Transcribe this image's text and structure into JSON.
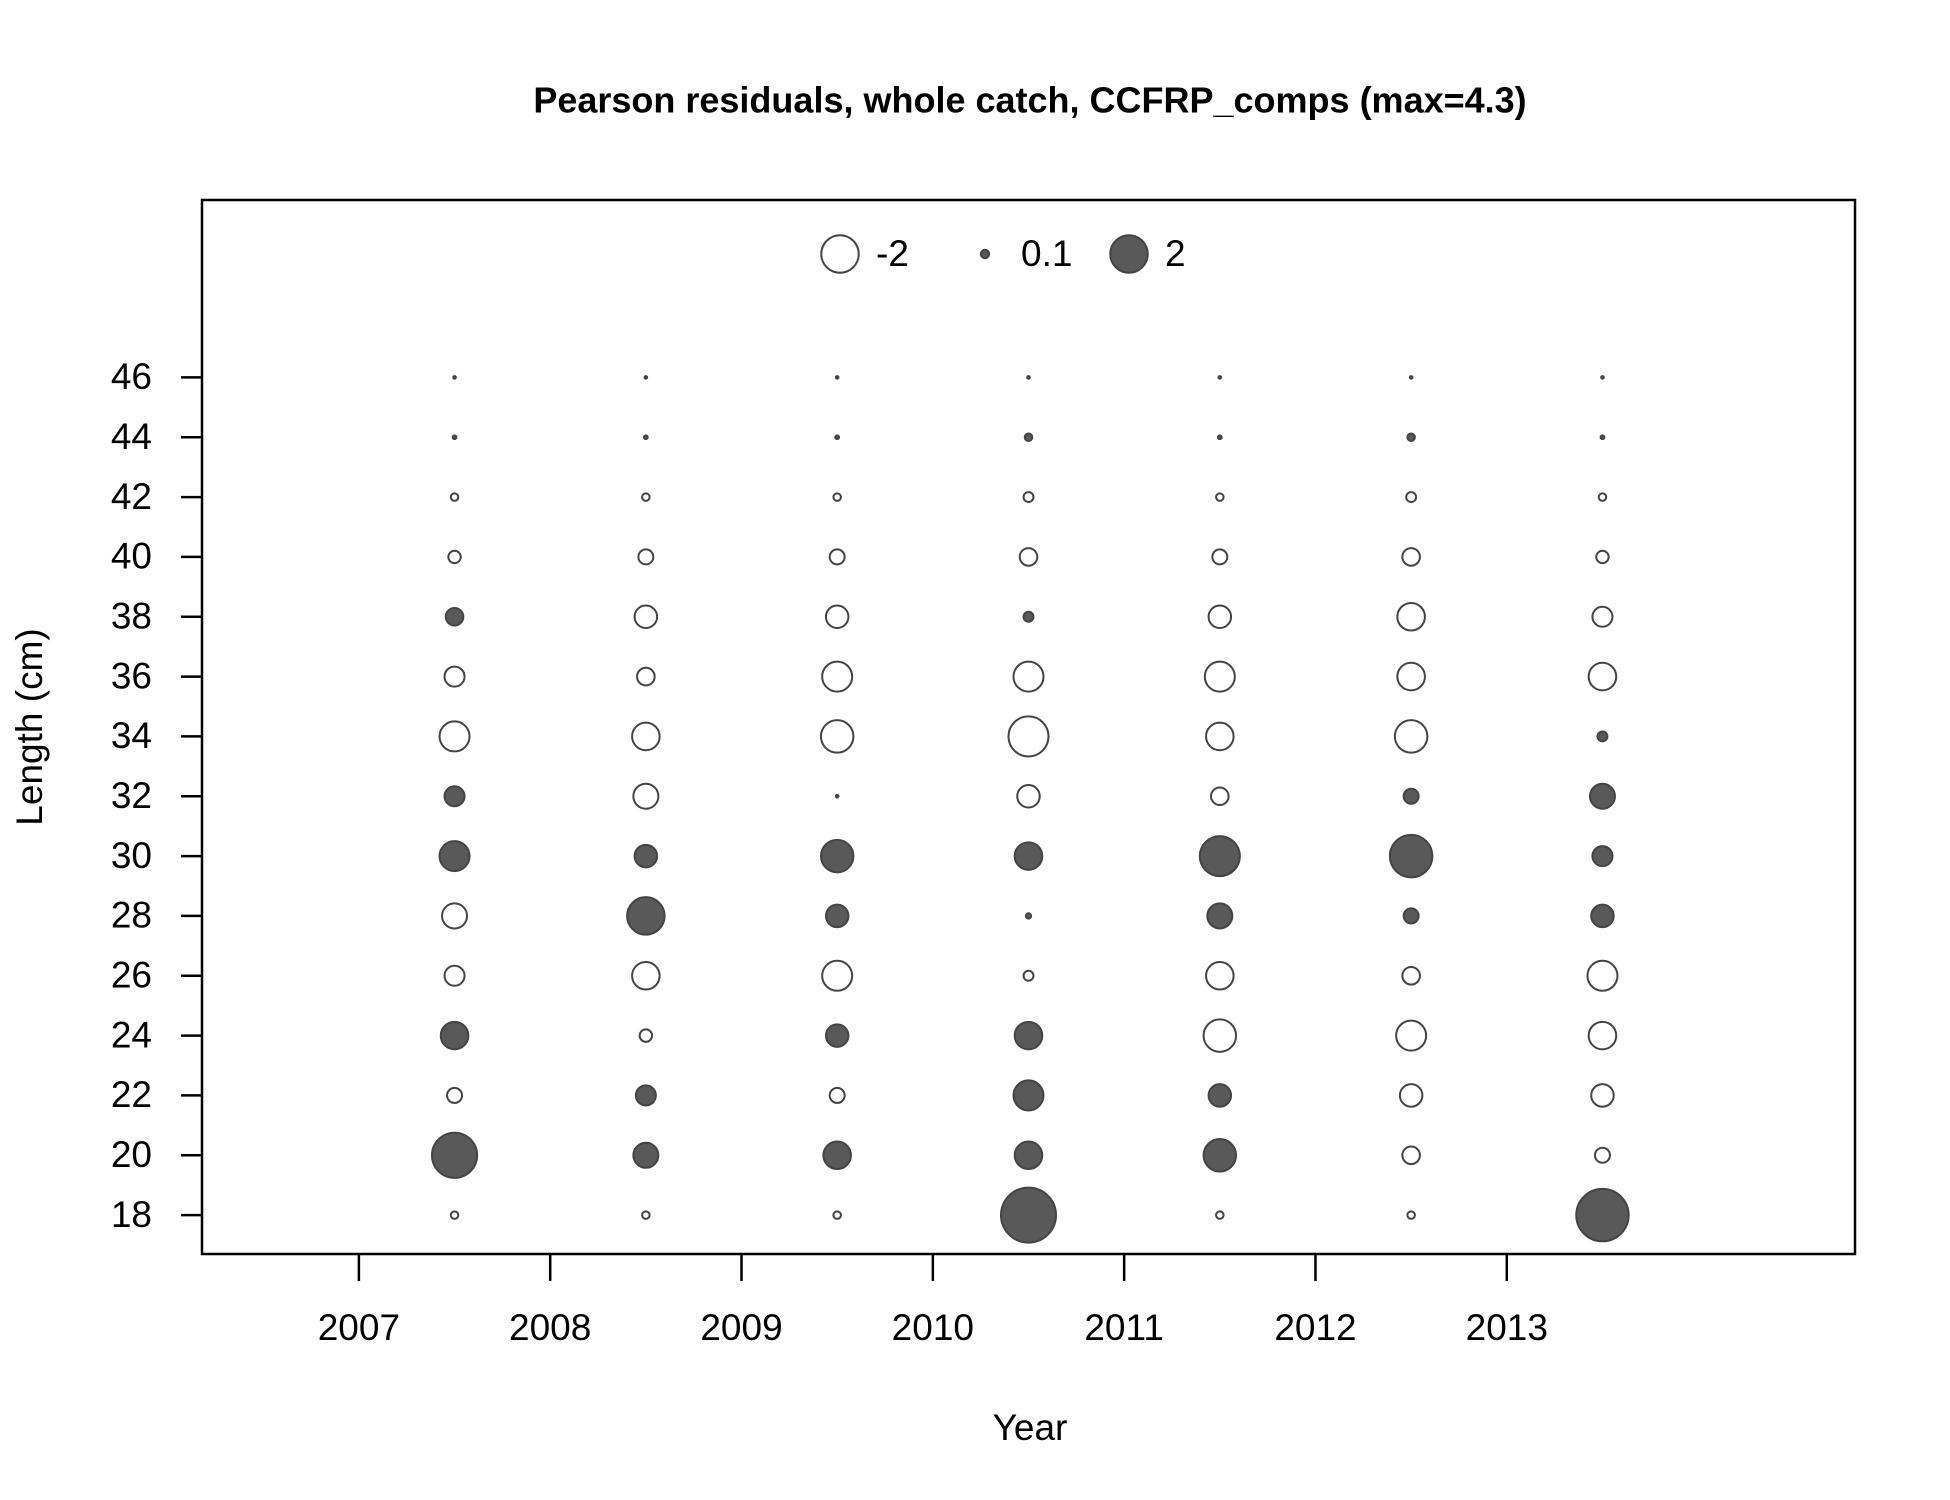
{
  "chart_data": {
    "type": "bubble",
    "title": "Pearson residuals, whole catch, CCFRP_comps (max=4.3)",
    "xlabel": "Year",
    "ylabel": "Length (cm)",
    "x": [
      2007.5,
      2007.5,
      2007.5,
      2007.5,
      2007.5,
      2007.5,
      2007.5,
      2007.5,
      2007.5,
      2007.5,
      2007.5,
      2007.5,
      2007.5,
      2007.5,
      2007.5,
      2008.5,
      2008.5,
      2008.5,
      2008.5,
      2008.5,
      2008.5,
      2008.5,
      2008.5,
      2008.5,
      2008.5,
      2008.5,
      2008.5,
      2008.5,
      2008.5,
      2008.5,
      2009.5,
      2009.5,
      2009.5,
      2009.5,
      2009.5,
      2009.5,
      2009.5,
      2009.5,
      2009.5,
      2009.5,
      2009.5,
      2009.5,
      2009.5,
      2009.5,
      2009.5,
      2010.5,
      2010.5,
      2010.5,
      2010.5,
      2010.5,
      2010.5,
      2010.5,
      2010.5,
      2010.5,
      2010.5,
      2010.5,
      2010.5,
      2010.5,
      2010.5,
      2010.5,
      2011.5,
      2011.5,
      2011.5,
      2011.5,
      2011.5,
      2011.5,
      2011.5,
      2011.5,
      2011.5,
      2011.5,
      2011.5,
      2011.5,
      2011.5,
      2011.5,
      2011.5,
      2012.5,
      2012.5,
      2012.5,
      2012.5,
      2012.5,
      2012.5,
      2012.5,
      2012.5,
      2012.5,
      2012.5,
      2012.5,
      2012.5,
      2012.5,
      2012.5,
      2012.5,
      2013.5,
      2013.5,
      2013.5,
      2013.5,
      2013.5,
      2013.5,
      2013.5,
      2013.5,
      2013.5,
      2013.5,
      2013.5,
      2013.5,
      2013.5,
      2013.5,
      2013.5
    ],
    "y": [
      18,
      20,
      22,
      24,
      26,
      28,
      30,
      32,
      34,
      36,
      38,
      40,
      42,
      44,
      46,
      18,
      20,
      22,
      24,
      26,
      28,
      30,
      32,
      34,
      36,
      38,
      40,
      42,
      44,
      46,
      18,
      20,
      22,
      24,
      26,
      28,
      30,
      32,
      34,
      36,
      38,
      40,
      42,
      44,
      46,
      18,
      20,
      22,
      24,
      26,
      28,
      30,
      32,
      34,
      36,
      38,
      40,
      42,
      44,
      46,
      18,
      20,
      22,
      24,
      26,
      28,
      30,
      32,
      34,
      36,
      38,
      40,
      42,
      44,
      46,
      18,
      20,
      22,
      24,
      26,
      28,
      30,
      32,
      34,
      36,
      38,
      40,
      42,
      44,
      46,
      18,
      20,
      22,
      24,
      26,
      28,
      30,
      32,
      34,
      36,
      38,
      40,
      42,
      44,
      46
    ],
    "values": [
      -0.08,
      2.9,
      -0.32,
      1.08,
      -0.57,
      -0.89,
      1.28,
      0.57,
      -1.28,
      -0.57,
      0.44,
      -0.22,
      -0.08,
      0.02,
      0.01,
      -0.08,
      0.89,
      0.57,
      -0.22,
      -1.08,
      2.0,
      0.72,
      -0.89,
      -1.08,
      -0.44,
      -0.72,
      -0.32,
      -0.08,
      0.02,
      0.01,
      -0.08,
      1.08,
      -0.32,
      0.72,
      -1.28,
      0.72,
      1.5,
      0.01,
      -1.5,
      -1.28,
      -0.72,
      -0.32,
      -0.08,
      0.02,
      0.01,
      4.3,
      1.08,
      1.28,
      1.08,
      -0.14,
      0.04,
      1.08,
      -0.72,
      -2.28,
      -1.28,
      0.14,
      -0.44,
      -0.14,
      0.08,
      0.01,
      -0.08,
      1.5,
      0.72,
      -1.5,
      -1.08,
      0.89,
      2.28,
      -0.44,
      -1.08,
      -1.28,
      -0.72,
      -0.32,
      -0.08,
      0.02,
      0.01,
      -0.08,
      -0.44,
      -0.72,
      -1.28,
      -0.44,
      0.32,
      2.57,
      0.32,
      -1.5,
      -1.08,
      -1.08,
      -0.44,
      -0.14,
      0.08,
      0.01,
      3.9,
      -0.32,
      -0.72,
      -1.08,
      -1.28,
      0.72,
      0.57,
      0.89,
      0.14,
      -1.08,
      -0.57,
      -0.22,
      -0.08,
      0.02,
      0.01
    ],
    "xlim": [
      2006.18,
      2014.82
    ],
    "ylim": [
      16.7,
      51.93
    ],
    "xticks": [
      2007,
      2008,
      2009,
      2010,
      2011,
      2012,
      2013
    ],
    "yticks": [
      18,
      20,
      22,
      24,
      26,
      28,
      30,
      32,
      34,
      36,
      38,
      40,
      42,
      44,
      46
    ],
    "legend": {
      "position": "top",
      "values": [
        -2,
        0.1,
        2
      ]
    },
    "positive_color": "#595959",
    "negative_color": "#ffffff"
  }
}
